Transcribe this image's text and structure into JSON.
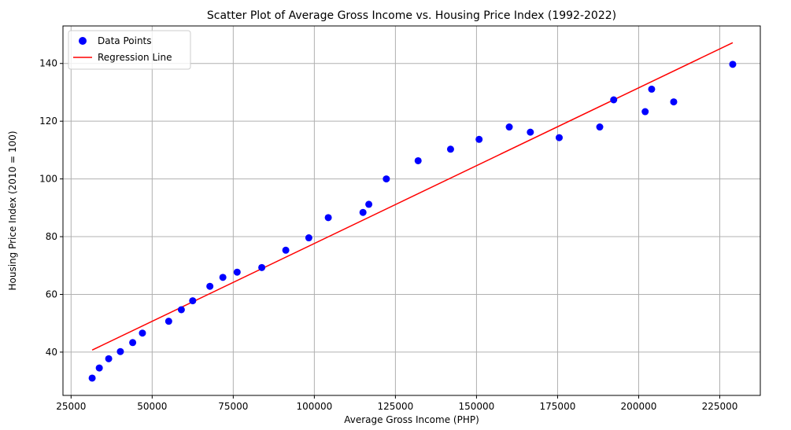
{
  "chart_data": {
    "type": "scatter",
    "title": "Scatter Plot of Average Gross Income vs. Housing Price Index (1992-2022)",
    "xlabel": "Average Gross Income (PHP)",
    "ylabel": "Housing Price Index (2010 = 100)",
    "xlim": [
      22500,
      237500
    ],
    "ylim": [
      25,
      153
    ],
    "xticks": [
      25000,
      50000,
      75000,
      100000,
      125000,
      150000,
      175000,
      200000,
      225000
    ],
    "yticks": [
      40,
      60,
      80,
      100,
      120,
      140
    ],
    "grid": true,
    "legend_position": "top-left",
    "series": [
      {
        "name": "Data Points",
        "kind": "scatter",
        "color": "#0000ff",
        "x": [
          31500,
          33700,
          36600,
          40200,
          44000,
          47000,
          55100,
          59000,
          62500,
          67800,
          71800,
          76200,
          83800,
          91200,
          98300,
          104300,
          115000,
          116800,
          122200,
          132000,
          142000,
          150800,
          160100,
          166600,
          175500,
          188000,
          192300,
          202000,
          204000,
          210800,
          229000
        ],
        "y": [
          31,
          34.5,
          37.7,
          40.2,
          43.3,
          46.6,
          50.7,
          54.7,
          57.8,
          62.8,
          65.9,
          67.7,
          69.3,
          75.3,
          79.6,
          86.6,
          88.4,
          91.2,
          100,
          106.3,
          110.3,
          113.7,
          118,
          116.2,
          114.3,
          118,
          127.4,
          123.3,
          131.1,
          126.7,
          139.7
        ]
      },
      {
        "name": "Regression Line",
        "kind": "line",
        "color": "#ff0000",
        "x": [
          31500,
          229000
        ],
        "y": [
          40.7,
          147.2
        ]
      }
    ]
  }
}
